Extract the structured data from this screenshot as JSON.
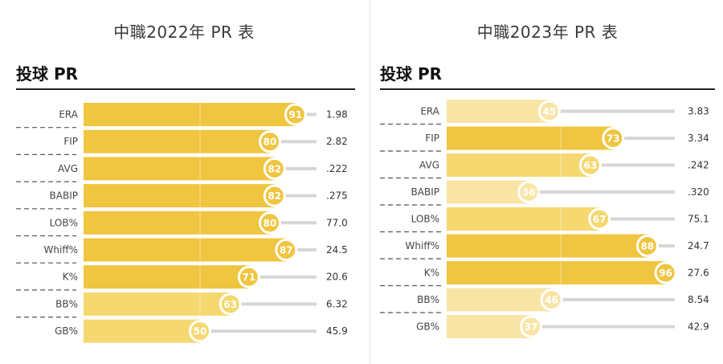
{
  "panels": [
    {
      "title": "中職2022年 PR 表",
      "section": "投球 PR",
      "chart_data": {
        "type": "bar",
        "orientation": "horizontal",
        "title": "中職2022年 PR 表",
        "subtitle": "投球 PR",
        "categories": [
          "ERA",
          "FIP",
          "AVG",
          "BABIP",
          "LOB%",
          "Whiff%",
          "K%",
          "BB%",
          "GB%"
        ],
        "series": [
          {
            "values": [
              91,
              80,
              82,
              82,
              80,
              87,
              71,
              63,
              50
            ]
          }
        ],
        "stat_values": [
          "1.98",
          "2.82",
          ".222",
          ".275",
          "77.0",
          "24.5",
          "20.6",
          "6.32",
          "45.9"
        ],
        "xlim": [
          0,
          100
        ],
        "grid": false
      }
    },
    {
      "title": "中職2023年 PR 表",
      "section": "投球 PR",
      "chart_data": {
        "type": "bar",
        "orientation": "horizontal",
        "title": "中職2023年 PR 表",
        "subtitle": "投球 PR",
        "categories": [
          "ERA",
          "FIP",
          "AVG",
          "BABIP",
          "LOB%",
          "Whiff%",
          "K%",
          "BB%",
          "GB%"
        ],
        "series": [
          {
            "values": [
              45,
              73,
              63,
              36,
              67,
              88,
              96,
              46,
              37
            ]
          }
        ],
        "stat_values": [
          "3.83",
          "3.34",
          ".242",
          ".320",
          "75.1",
          "24.7",
          "27.6",
          "8.54",
          "42.9"
        ],
        "xlim": [
          0,
          100
        ],
        "grid": false
      }
    }
  ],
  "colors": {
    "bar_high": "#f0c53f",
    "bar_mid": "#f5d870",
    "bar_low": "#f8e5a6",
    "track": "#d6d6d6",
    "badge_ring": "#ffffff"
  }
}
